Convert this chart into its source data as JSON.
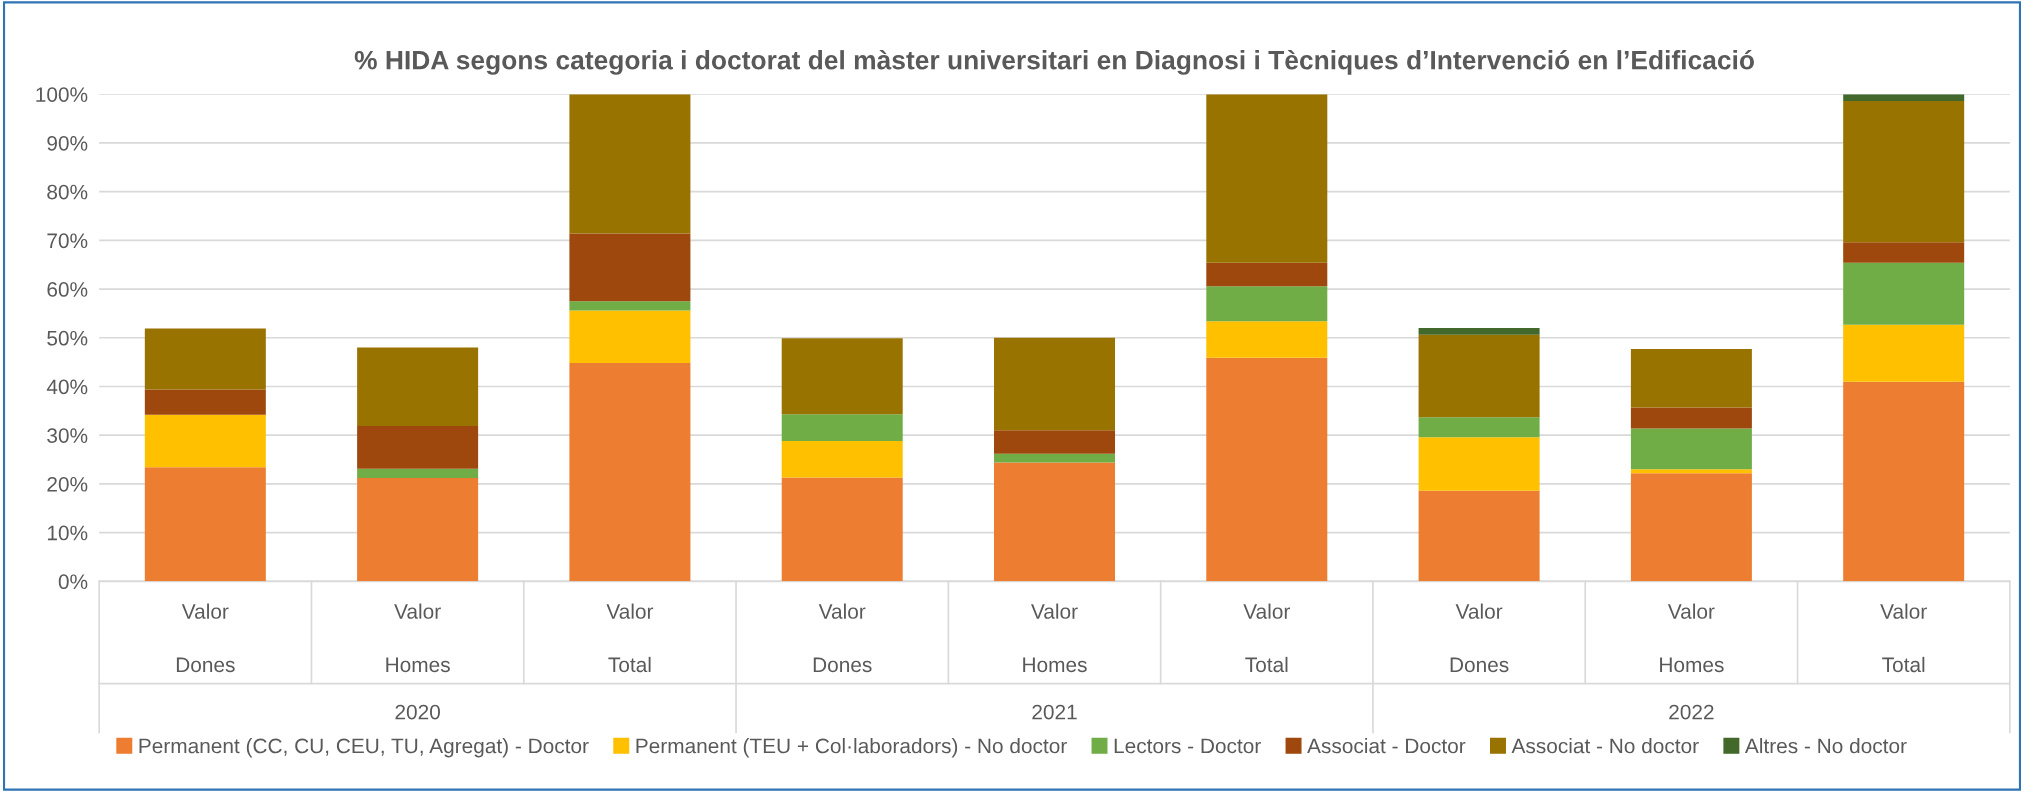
{
  "chart_data": {
    "type": "bar",
    "stacked": true,
    "title": "% HIDA segons categoria i doctorat del màster universitari en Diagnosi i Tècniques d’Intervenció en l’Edificació",
    "categories": [
      "Valor",
      "Valor",
      "Valor",
      "Valor",
      "Valor",
      "Valor",
      "Valor",
      "Valor",
      "Valor"
    ],
    "annotations": [
      "Dones",
      "Homes",
      "Total",
      "Dones",
      "Homes",
      "Total",
      "Dones",
      "Homes",
      "Total",
      "2020",
      "2021",
      "2022"
    ],
    "series": [
      {
        "name": "Permanent (CC, CU, CEU, TU, Agregat) - Doctor",
        "color": "#ed7d31",
        "values": [
          23.4,
          21.2,
          44.8,
          21.3,
          24.4,
          45.9,
          18.6,
          22.2,
          41.0
        ]
      },
      {
        "name": "Permanent (TEU + Col·laboradors) - No doctor",
        "color": "#ffc000",
        "values": [
          10.8,
          0,
          10.8,
          7.5,
          0,
          7.5,
          11.0,
          0.8,
          11.7
        ]
      },
      {
        "name": "Lectors - Doctor",
        "color": "#70ad47",
        "values": [
          0,
          1.9,
          1.9,
          5.5,
          1.8,
          7.2,
          4.1,
          8.4,
          12.7
        ]
      },
      {
        "name": "Associat - Doctor",
        "color": "#9e480e",
        "values": [
          5.2,
          8.8,
          13.9,
          0,
          4.8,
          4.8,
          0,
          4.3,
          4.2
        ]
      },
      {
        "name": "Associat - No doctor",
        "color": "#997300",
        "values": [
          12.5,
          16.1,
          28.6,
          15.6,
          19.0,
          34.6,
          16.9,
          12.0,
          29.0
        ]
      },
      {
        "name": "Altres - No doctor",
        "color": "#43682b",
        "values": [
          0,
          0,
          0,
          0,
          0,
          0,
          1.4,
          0,
          1.4
        ]
      }
    ],
    "ylim": [
      0,
      100
    ],
    "yticks": [
      {
        "value": 0,
        "label": "0%"
      },
      {
        "value": 10,
        "label": "10%"
      },
      {
        "value": 20,
        "label": "20%"
      },
      {
        "value": 30,
        "label": "30%"
      },
      {
        "value": 40,
        "label": "40%"
      },
      {
        "value": 50,
        "label": "50%"
      },
      {
        "value": 60,
        "label": "60%"
      },
      {
        "value": 70,
        "label": "70%"
      },
      {
        "value": 80,
        "label": "80%"
      },
      {
        "value": 90,
        "label": "90%"
      },
      {
        "value": 100,
        "label": "100%"
      }
    ],
    "grid": "y",
    "legend": "bottom"
  }
}
